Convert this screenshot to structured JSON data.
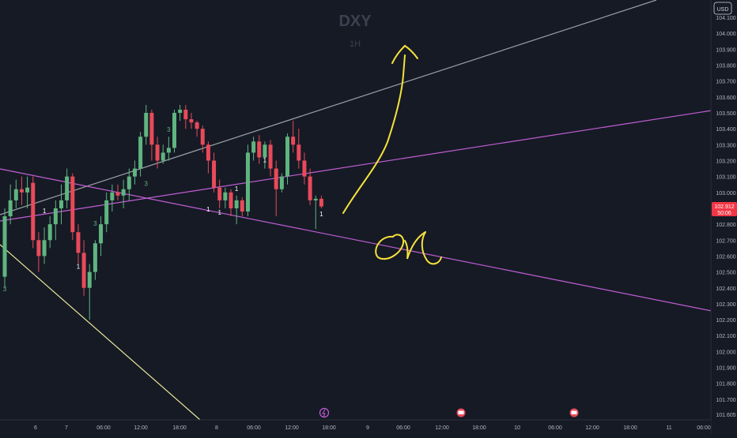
{
  "symbol": "DXY",
  "timeframe": "1H",
  "currency": "USD",
  "price_scale_labels": [
    "104.100",
    "104.000",
    "103.900",
    "103.800",
    "103.700",
    "103.600",
    "103.500",
    "103.400",
    "103.300",
    "103.200",
    "103.100",
    "103.000",
    "102.900",
    "102.800",
    "102.700",
    "102.600",
    "102.500",
    "102.400",
    "102.300",
    "102.200",
    "102.100",
    "102.000",
    "101.900",
    "101.800",
    "101.700",
    "101.605"
  ],
  "time_axis_labels": [
    "6",
    "7",
    "06:00",
    "12:00",
    "18:00",
    "8",
    "06:00",
    "12:00",
    "18:00",
    "9",
    "06:00",
    "12:00",
    "18:00",
    "10",
    "06:00",
    "12:00",
    "18:00",
    "11",
    "06:00"
  ],
  "current_price": {
    "value": "102.912",
    "countdown": "50:06",
    "color": "#f23645"
  },
  "handwriting": {
    "text": "or",
    "color": "#f5e23a"
  },
  "colors": {
    "bull": "#5fb57f",
    "bear": "#e84a5a",
    "trendline_purple": "#c25fd6",
    "trendline_gray": "#9aa0a6",
    "trendline_yellow": "#e6e69a"
  },
  "chart_data": {
    "type": "candlestick",
    "ylim": [
      101.605,
      104.15
    ],
    "x": [
      "6",
      "7",
      "06:00",
      "12:00",
      "18:00",
      "8",
      "06:00",
      "12:00",
      "18:00"
    ],
    "candles": [
      {
        "o": 102.47,
        "h": 102.9,
        "l": 102.4,
        "c": 102.85
      },
      {
        "o": 102.85,
        "h": 103.05,
        "l": 102.8,
        "c": 102.95
      },
      {
        "o": 102.95,
        "h": 103.08,
        "l": 102.9,
        "c": 103.02
      },
      {
        "o": 103.02,
        "h": 103.1,
        "l": 102.92,
        "c": 103.0
      },
      {
        "o": 103.0,
        "h": 103.1,
        "l": 102.9,
        "c": 103.03
      },
      {
        "o": 103.06,
        "h": 103.1,
        "l": 102.65,
        "c": 102.7
      },
      {
        "o": 102.7,
        "h": 102.75,
        "l": 102.5,
        "c": 102.6
      },
      {
        "o": 102.6,
        "h": 102.78,
        "l": 102.55,
        "c": 102.7
      },
      {
        "o": 102.7,
        "h": 102.85,
        "l": 102.65,
        "c": 102.8
      },
      {
        "o": 102.8,
        "h": 102.95,
        "l": 102.7,
        "c": 102.9
      },
      {
        "o": 102.9,
        "h": 103.05,
        "l": 102.8,
        "c": 102.95
      },
      {
        "o": 102.95,
        "h": 103.15,
        "l": 102.9,
        "c": 103.1
      },
      {
        "o": 103.1,
        "h": 103.12,
        "l": 102.7,
        "c": 102.75
      },
      {
        "o": 102.75,
        "h": 102.8,
        "l": 102.55,
        "c": 102.62
      },
      {
        "o": 102.62,
        "h": 102.7,
        "l": 102.35,
        "c": 102.4
      },
      {
        "o": 102.4,
        "h": 102.55,
        "l": 102.2,
        "c": 102.5
      },
      {
        "o": 102.5,
        "h": 102.7,
        "l": 102.45,
        "c": 102.68
      },
      {
        "o": 102.68,
        "h": 102.85,
        "l": 102.6,
        "c": 102.8
      },
      {
        "o": 102.8,
        "h": 103.0,
        "l": 102.75,
        "c": 102.95
      },
      {
        "o": 102.95,
        "h": 103.05,
        "l": 102.88,
        "c": 103.0
      },
      {
        "o": 103.0,
        "h": 103.05,
        "l": 102.95,
        "c": 102.98
      },
      {
        "o": 102.98,
        "h": 103.08,
        "l": 102.9,
        "c": 103.02
      },
      {
        "o": 103.02,
        "h": 103.15,
        "l": 102.95,
        "c": 103.1
      },
      {
        "o": 103.1,
        "h": 103.2,
        "l": 103.05,
        "c": 103.15
      },
      {
        "o": 103.15,
        "h": 103.38,
        "l": 103.1,
        "c": 103.35
      },
      {
        "o": 103.35,
        "h": 103.55,
        "l": 103.3,
        "c": 103.5
      },
      {
        "o": 103.5,
        "h": 103.52,
        "l": 103.2,
        "c": 103.3
      },
      {
        "o": 103.3,
        "h": 103.35,
        "l": 103.15,
        "c": 103.2
      },
      {
        "o": 103.2,
        "h": 103.3,
        "l": 103.18,
        "c": 103.25
      },
      {
        "o": 103.25,
        "h": 103.35,
        "l": 103.2,
        "c": 103.28
      },
      {
        "o": 103.28,
        "h": 103.52,
        "l": 103.25,
        "c": 103.5
      },
      {
        "o": 103.5,
        "h": 103.55,
        "l": 103.45,
        "c": 103.52
      },
      {
        "o": 103.52,
        "h": 103.55,
        "l": 103.4,
        "c": 103.46
      },
      {
        "o": 103.46,
        "h": 103.5,
        "l": 103.4,
        "c": 103.44
      },
      {
        "o": 103.44,
        "h": 103.45,
        "l": 103.35,
        "c": 103.4
      },
      {
        "o": 103.4,
        "h": 103.42,
        "l": 103.25,
        "c": 103.3
      },
      {
        "o": 103.3,
        "h": 103.32,
        "l": 103.12,
        "c": 103.2
      },
      {
        "o": 103.2,
        "h": 103.25,
        "l": 103.0,
        "c": 103.03
      },
      {
        "o": 103.03,
        "h": 103.08,
        "l": 102.9,
        "c": 102.95
      },
      {
        "o": 102.95,
        "h": 103.03,
        "l": 102.9,
        "c": 103.0
      },
      {
        "o": 103.0,
        "h": 103.02,
        "l": 102.85,
        "c": 102.9
      },
      {
        "o": 102.9,
        "h": 102.98,
        "l": 102.8,
        "c": 102.95
      },
      {
        "o": 102.95,
        "h": 102.97,
        "l": 102.85,
        "c": 102.88
      },
      {
        "o": 102.88,
        "h": 103.3,
        "l": 102.85,
        "c": 103.25
      },
      {
        "o": 103.25,
        "h": 103.35,
        "l": 103.2,
        "c": 103.32
      },
      {
        "o": 103.32,
        "h": 103.36,
        "l": 103.18,
        "c": 103.22
      },
      {
        "o": 103.22,
        "h": 103.32,
        "l": 103.15,
        "c": 103.3
      },
      {
        "o": 103.3,
        "h": 103.33,
        "l": 103.1,
        "c": 103.15
      },
      {
        "o": 103.15,
        "h": 103.2,
        "l": 102.85,
        "c": 103.02
      },
      {
        "o": 103.02,
        "h": 103.12,
        "l": 103.0,
        "c": 103.1
      },
      {
        "o": 103.1,
        "h": 103.37,
        "l": 103.05,
        "c": 103.35
      },
      {
        "o": 103.35,
        "h": 103.45,
        "l": 103.25,
        "c": 103.3
      },
      {
        "o": 103.3,
        "h": 103.4,
        "l": 103.15,
        "c": 103.2
      },
      {
        "o": 103.2,
        "h": 103.25,
        "l": 103.05,
        "c": 103.1
      },
      {
        "o": 103.1,
        "h": 103.15,
        "l": 102.92,
        "c": 102.95
      },
      {
        "o": 102.95,
        "h": 102.98,
        "l": 102.77,
        "c": 102.96
      },
      {
        "o": 102.96,
        "h": 102.98,
        "l": 102.9,
        "c": 102.912
      }
    ],
    "annotations": [
      {
        "candle": 0,
        "price": 102.38,
        "text": "3"
      },
      {
        "candle": 7,
        "price": 102.87,
        "text": "1"
      },
      {
        "candle": 13,
        "price": 102.52,
        "text": "1"
      },
      {
        "candle": 16,
        "price": 102.79,
        "text": "3"
      },
      {
        "candle": 25,
        "price": 103.04,
        "text": "3"
      },
      {
        "candle": 29,
        "price": 103.38,
        "text": "3"
      },
      {
        "candle": 36,
        "price": 102.88,
        "text": "1"
      },
      {
        "candle": 38,
        "price": 102.86,
        "text": "1"
      },
      {
        "candle": 41,
        "price": 103.01,
        "text": "1"
      },
      {
        "candle": 46,
        "price": 103.19,
        "text": "1"
      },
      {
        "candle": 56,
        "price": 102.85,
        "text": "1"
      }
    ]
  }
}
